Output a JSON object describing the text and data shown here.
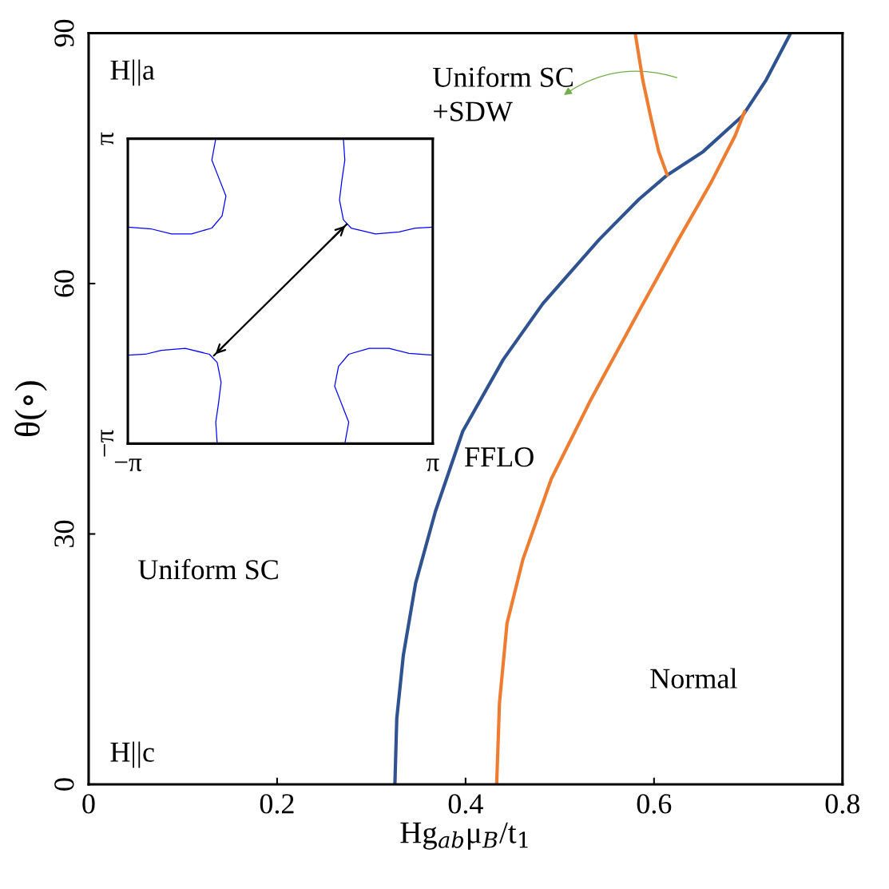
{
  "chart_data": [
    {
      "type": "line",
      "xlabel": "Hg$_{ab}$μ$_{B}$/t$_{1}$",
      "ylabel": "θ(∘)",
      "xlim": [
        0,
        0.8
      ],
      "ylim": [
        0,
        90
      ],
      "xticks": [
        0,
        0.2,
        0.4,
        0.6,
        0.8
      ],
      "yticks": [
        0,
        30,
        60,
        90
      ],
      "grid": false,
      "marker": "none",
      "line_style": "solid",
      "series": [
        {
          "color": "#2f5291",
          "x": [
            0.325,
            0.327,
            0.334,
            0.347,
            0.368,
            0.397,
            0.44,
            0.482,
            0.542,
            0.584,
            0.614,
            0.652,
            0.694,
            0.719,
            0.745
          ],
          "values": [
            0,
            7.9,
            15.5,
            24.1,
            32.7,
            42.3,
            50.9,
            57.6,
            65.3,
            70.1,
            73.0,
            75.8,
            80.1,
            84.4,
            90
          ]
        },
        {
          "color": "#ee7d31",
          "x": [
            0.433,
            0.436,
            0.444,
            0.461,
            0.491,
            0.533,
            0.584,
            0.626,
            0.66,
            0.686,
            0.696
          ],
          "values": [
            0,
            9.8,
            19.3,
            27.0,
            36.6,
            46.1,
            56.7,
            65.3,
            72.0,
            77.7,
            80.6
          ]
        },
        {
          "color": "#ee7d31",
          "x": [
            0.58,
            0.588,
            0.597,
            0.605,
            0.614
          ],
          "values": [
            90,
            84.4,
            79.7,
            75.8,
            73.0
          ]
        }
      ],
      "annotations": [
        "H||a",
        "H||c",
        "Uniform SC\n+SDW",
        "Uniform SC",
        "FFLO",
        "Normal"
      ]
    },
    {
      "type": "line",
      "xlim": [
        -3.14159,
        3.14159
      ],
      "ylim": [
        -3.14159,
        3.14159
      ],
      "xticks": [
        {
          "value": -3.14159,
          "label": "−π"
        },
        {
          "value": 3.14159,
          "label": "π"
        }
      ],
      "yticks": [
        {
          "value": -3.14159,
          "label": "−π"
        },
        {
          "value": 3.14159,
          "label": "π"
        }
      ],
      "grid": false,
      "marker": "none",
      "line_style": "solid",
      "series": [
        {
          "color": "#0000ff",
          "x": [
            -1.33,
            -1.41,
            -1.25,
            -1.12,
            -1.2,
            -1.41,
            -1.83,
            -2.24,
            -2.65,
            -3.14
          ],
          "values": [
            3.14,
            2.7,
            2.29,
            1.96,
            1.55,
            1.3,
            1.18,
            1.18,
            1.28,
            1.32
          ]
        },
        {
          "color": "#0000ff",
          "x": [
            1.3,
            1.33,
            1.27,
            1.22,
            1.3,
            1.46,
            1.96,
            2.45,
            2.78,
            3.14
          ],
          "values": [
            3.14,
            2.7,
            2.29,
            1.88,
            1.47,
            1.3,
            1.18,
            1.22,
            1.3,
            1.32
          ]
        },
        {
          "color": "#0000ff",
          "x": [
            -1.3,
            -1.33,
            -1.27,
            -1.22,
            -1.3,
            -1.46,
            -1.96,
            -2.45,
            -2.78,
            -3.14
          ],
          "values": [
            -3.14,
            -2.7,
            -2.29,
            -1.88,
            -1.47,
            -1.3,
            -1.18,
            -1.22,
            -1.3,
            -1.32
          ]
        },
        {
          "color": "#0000ff",
          "x": [
            1.33,
            1.41,
            1.25,
            1.12,
            1.2,
            1.41,
            1.83,
            2.24,
            2.65,
            3.14
          ],
          "values": [
            -3.14,
            -2.7,
            -2.29,
            -1.96,
            -1.55,
            -1.3,
            -1.18,
            -1.18,
            -1.28,
            -1.32
          ]
        },
        {
          "color": "#000000",
          "x": [
            -1.37,
            1.37
          ],
          "values": [
            -1.33,
            1.38
          ]
        }
      ]
    }
  ]
}
